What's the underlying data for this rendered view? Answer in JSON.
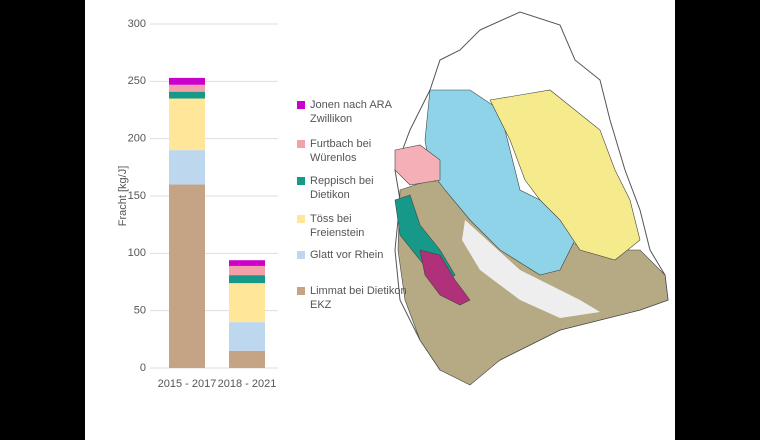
{
  "chart_data": {
    "type": "bar",
    "stacked": true,
    "y_label": "Fracht [kg/J]",
    "categories": [
      "2015 - 2017",
      "2018 - 2021"
    ],
    "series": [
      {
        "name": "Limmat bei Dietikon EKZ",
        "color": "#c4a484",
        "values": [
          160,
          15
        ]
      },
      {
        "name": "Glatt vor Rhein",
        "color": "#bdd7ee",
        "values": [
          30,
          25
        ]
      },
      {
        "name": "Töss bei Freienstein",
        "color": "#ffe699",
        "values": [
          45,
          34
        ]
      },
      {
        "name": "Reppisch bei Dietikon",
        "color": "#17998a",
        "values": [
          6,
          7
        ]
      },
      {
        "name": "Furtbach bei Würenlos",
        "color": "#f4a0a8",
        "values": [
          6,
          8
        ]
      },
      {
        "name": "Jonen nach ARA Zwillikon",
        "color": "#cc00cc",
        "values": [
          6,
          5
        ]
      }
    ],
    "ylim": [
      0,
      300
    ],
    "yticks": [
      0,
      50,
      100,
      150,
      200,
      250,
      300
    ],
    "grid": true
  }
}
